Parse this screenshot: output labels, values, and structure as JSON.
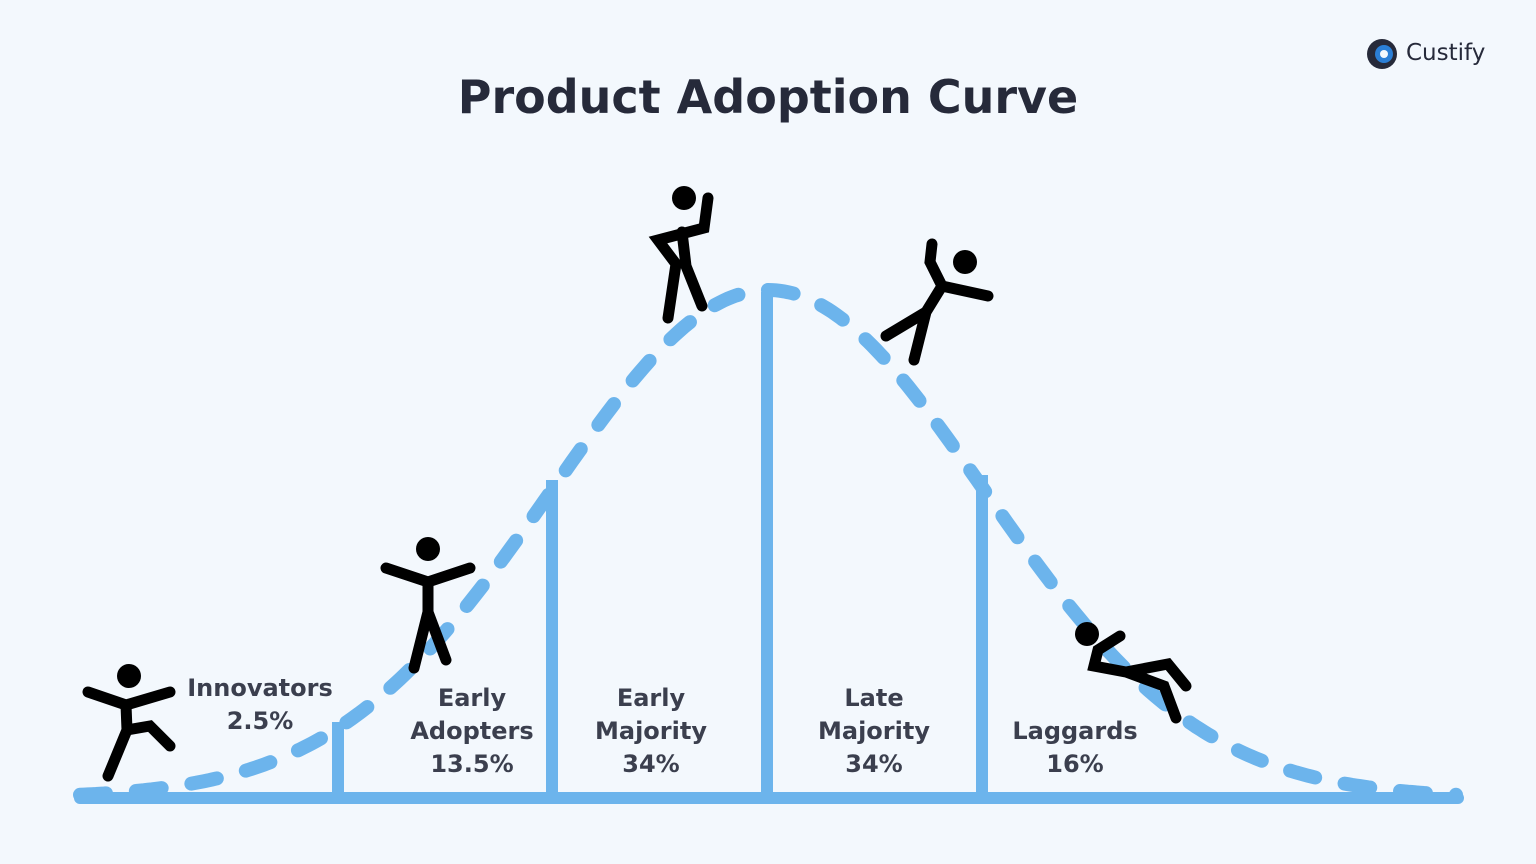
{
  "header": {
    "title": "Product Adoption Curve",
    "brand": "Custify"
  },
  "segments": [
    {
      "label": "Innovators",
      "share": "2.5%"
    },
    {
      "label": "Early Adopters",
      "share": "13.5%"
    },
    {
      "label": "Early Majority",
      "share": "34%"
    },
    {
      "label": "Late Majority",
      "share": "34%"
    },
    {
      "label": "Laggards",
      "share": "16%"
    }
  ]
}
